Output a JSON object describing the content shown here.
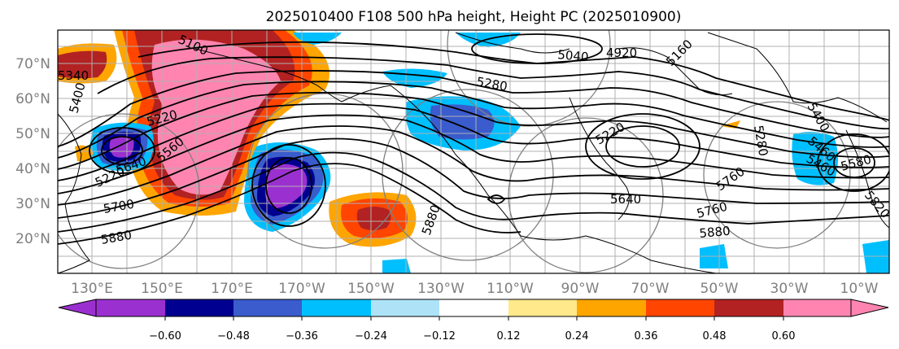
{
  "title": "2025010400 F108 500 hPa height, Height PC (2025010900)",
  "lat_labels": [
    "70°N",
    "60°N",
    "50°N",
    "40°N",
    "30°N",
    "20°N"
  ],
  "lon_labels": [
    "130°E",
    "150°E",
    "170°E",
    "170°W",
    "150°W",
    "130°W",
    "110°W",
    "90°W",
    "70°W",
    "50°W",
    "30°W",
    "10°W"
  ],
  "colorbar": {
    "tick_labels": [
      "−0.60",
      "−0.48",
      "−0.36",
      "−0.24",
      "−0.12",
      "0.12",
      "0.24",
      "0.36",
      "0.48",
      "0.60"
    ],
    "colors": [
      "#9b30d0",
      "#000090",
      "#3a5ccc",
      "#00bfff",
      "#aee2f7",
      "#ffffff",
      "#ffe98a",
      "#ffa500",
      "#ff4500",
      "#b22222",
      "#ff85b0"
    ]
  },
  "contour_labels": [
    "5100",
    "5220",
    "5340",
    "5400",
    "5220",
    "5560",
    "5640",
    "5700",
    "5880",
    "5880",
    "5280",
    "4920",
    "5040",
    "5160",
    "5220",
    "5460",
    "5640",
    "5760",
    "5880",
    "5400",
    "5280",
    "5460",
    "5580",
    "5760",
    "5820"
  ]
}
